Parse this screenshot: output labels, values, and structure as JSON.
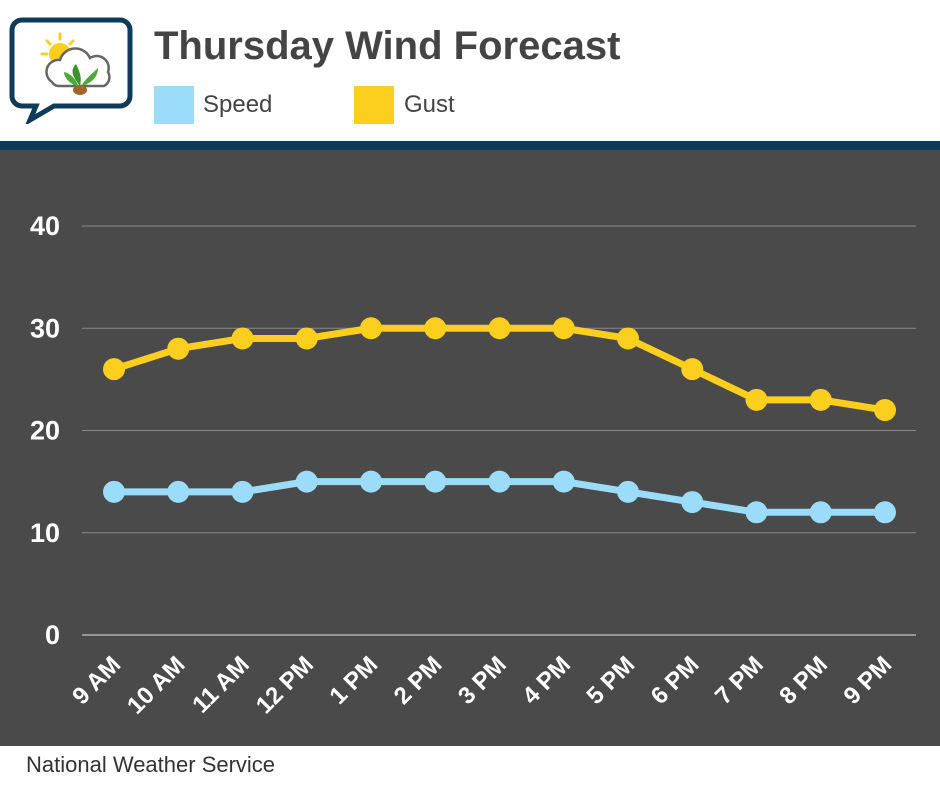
{
  "header": {
    "title": "Thursday Wind Forecast"
  },
  "legend": [
    {
      "label": "Speed",
      "color": "#9bdcfb"
    },
    {
      "label": "Gust",
      "color": "#fccf1f"
    }
  ],
  "footer": {
    "source": "National Weather Service"
  },
  "colors": {
    "plot_background": "#4a4a4a",
    "header_band": "#0e3b5a",
    "grid": "#8a8a8a"
  },
  "chart_data": {
    "type": "line",
    "title": "Thursday Wind Forecast",
    "xlabel": "",
    "ylabel": "",
    "ylim": [
      0,
      40
    ],
    "yticks": [
      0,
      10,
      20,
      30,
      40
    ],
    "grid": true,
    "legend_position": "top-left",
    "categories": [
      "9 AM",
      "10 AM",
      "11 AM",
      "12 PM",
      "1 PM",
      "2 PM",
      "3 PM",
      "4 PM",
      "5 PM",
      "6 PM",
      "7 PM",
      "8 PM",
      "9 PM"
    ],
    "series": [
      {
        "name": "Speed",
        "color": "#9bdcfb",
        "values": [
          14,
          14,
          14,
          15,
          15,
          15,
          15,
          15,
          14,
          13,
          12,
          12,
          12
        ]
      },
      {
        "name": "Gust",
        "color": "#fccf1f",
        "values": [
          26,
          28,
          29,
          29,
          30,
          30,
          30,
          30,
          29,
          26,
          23,
          23,
          22
        ]
      }
    ]
  }
}
